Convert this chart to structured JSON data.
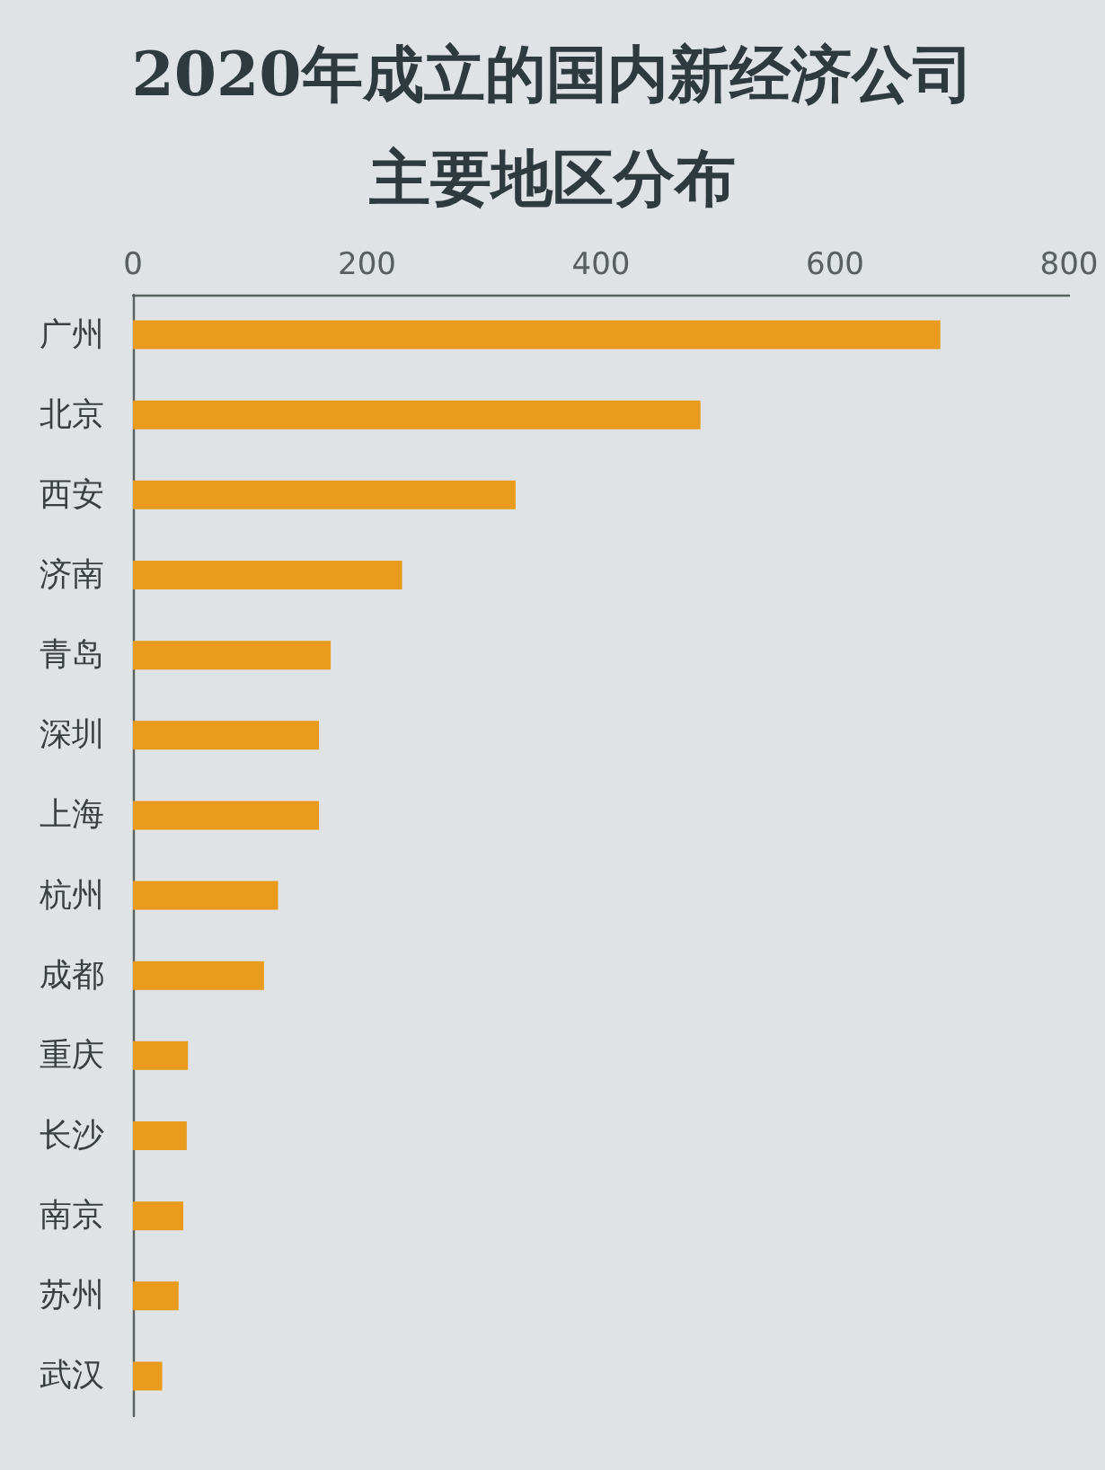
{
  "chart_data": {
    "type": "bar",
    "orientation": "horizontal",
    "title": "2020年成立的国内新经济公司",
    "subtitle": "主要地区分布",
    "categories": [
      "广州",
      "北京",
      "西安",
      "济南",
      "青岛",
      "深圳",
      "上海",
      "杭州",
      "成都",
      "重庆",
      "长沙",
      "南京",
      "苏州",
      "武汉"
    ],
    "values": [
      690,
      485,
      327,
      230,
      169,
      159,
      159,
      124,
      112,
      47,
      46,
      43,
      39,
      25
    ],
    "color": "#e89b1c",
    "xlim": [
      0,
      800
    ],
    "xticks": [
      0,
      200,
      400,
      600,
      800
    ],
    "grid": false
  }
}
